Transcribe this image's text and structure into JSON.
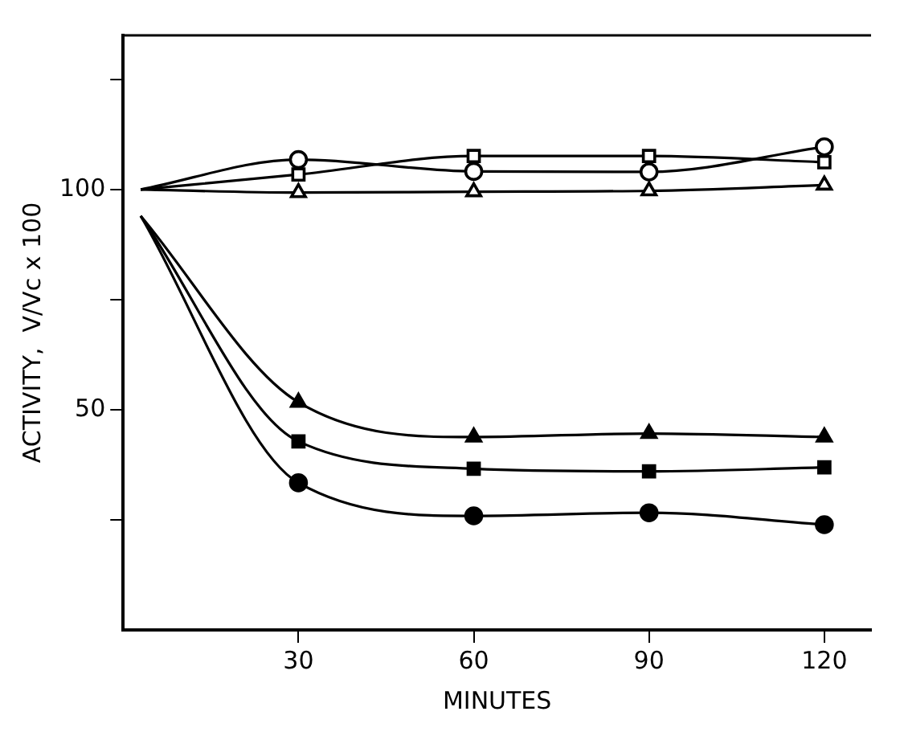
{
  "chart_data": {
    "type": "line",
    "xlabel": "MINUTES",
    "ylabel": "ACTIVITY,  V/Vc x 100",
    "xlim": [
      0,
      128
    ],
    "xticks": [
      30,
      60,
      90,
      120
    ],
    "ylim": [
      0,
      135
    ],
    "yticks": [
      {
        "value": 25,
        "label": null
      },
      50,
      {
        "value": 75,
        "label": null
      },
      100,
      {
        "value": 125,
        "label": null
      }
    ],
    "grid": false,
    "legend": false,
    "line_style": "solid",
    "series": [
      {
        "color": "#000000",
        "marker": "circle",
        "colors": [
          "#ffffff",
          "#ffffff",
          "#ffffff",
          "#ffffff",
          "#ffffff"
        ],
        "x": [
          3,
          30,
          60,
          90,
          120
        ],
        "values": [
          100,
          106.8,
          104.1,
          104,
          109.7
        ]
      },
      {
        "color": "#000000",
        "marker": "square",
        "colors": [
          "#ffffff",
          "#ffffff",
          "#ffffff",
          "#ffffff",
          "#ffffff"
        ],
        "x": [
          3,
          30,
          60,
          90,
          120
        ],
        "values": [
          100,
          103.4,
          107.6,
          107.6,
          106.2
        ]
      },
      {
        "color": "#000000",
        "marker": "triangle",
        "colors": [
          "#ffffff",
          "#ffffff",
          "#ffffff",
          "#ffffff",
          "#ffffff"
        ],
        "x": [
          3,
          30,
          60,
          90,
          120
        ],
        "values": [
          100,
          99.3,
          99.5,
          99.7,
          101
        ]
      },
      {
        "color": "#000000",
        "marker": "triangle",
        "x": [
          3,
          30,
          60,
          90,
          120
        ],
        "values": [
          94,
          51.7,
          43.8,
          44.6,
          43.8
        ]
      },
      {
        "color": "#000000",
        "marker": "square",
        "x": [
          3,
          30,
          60,
          90,
          120
        ],
        "values": [
          94,
          42.8,
          36.6,
          36,
          36.9
        ]
      },
      {
        "color": "#000000",
        "marker": "circle",
        "x": [
          3,
          30,
          60,
          90,
          120
        ],
        "values": [
          94,
          33.4,
          25.9,
          26.6,
          23.9
        ]
      }
    ]
  }
}
